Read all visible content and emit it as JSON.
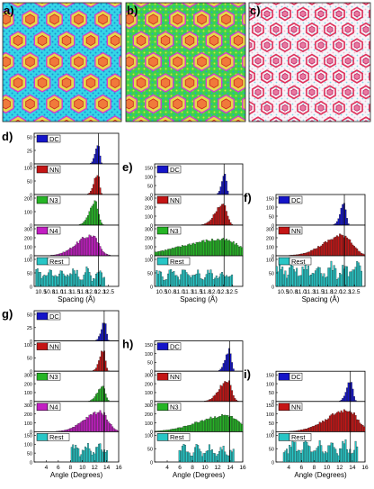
{
  "figure": {
    "image_panels": [
      {
        "label": "a)",
        "style": "blue-hex"
      },
      {
        "label": "b)",
        "style": "green-hex"
      },
      {
        "label": "c)",
        "style": "white-hex"
      }
    ],
    "spacing_panel_labels": [
      "d)",
      "e)",
      "f)"
    ],
    "angle_panel_labels": [
      "g)",
      "h)",
      "i)"
    ],
    "x_titles": {
      "spacing": "Spacing (Å)",
      "angle": "Angle (Degrees)"
    },
    "colors": {
      "DC": "#1515c9",
      "NN": "#c41515",
      "N3": "#26b526",
      "N4": "#c21ec2",
      "Rest": "#28c6c6"
    }
  },
  "chart_data": [
    {
      "type": "bar",
      "panel": "d)",
      "xlabel": "Spacing (Å)",
      "xlim": [
        10.3,
        12.8
      ],
      "xticks": [
        "10.5",
        "10.8",
        "11.0",
        "11.3",
        "11.5",
        "11.8",
        "12.0",
        "12.3",
        "12.5"
      ],
      "xtick_values": [
        10.5,
        10.75,
        11.0,
        11.25,
        11.5,
        11.75,
        12.0,
        12.25,
        12.5
      ],
      "vline": 12.2,
      "series": [
        {
          "name": "DC",
          "ymax": 50,
          "yticks": [
            "0",
            "25",
            "50"
          ],
          "peak": 12.2,
          "sigma": 0.04,
          "height": 42
        },
        {
          "name": "NN",
          "ymax": 100,
          "yticks": [
            "0",
            "50",
            "100"
          ],
          "peak": 12.18,
          "sigma": 0.05,
          "height": 86
        },
        {
          "name": "N3",
          "ymax": 200,
          "yticks": [
            "0",
            "100",
            "200"
          ],
          "peak": 12.12,
          "sigma": 0.08,
          "height": 190
        },
        {
          "name": "N4",
          "ymax": 300,
          "yticks": [
            "0",
            "100",
            "200",
            "300"
          ],
          "peak": 12.0,
          "sigma": 0.2,
          "height": 250
        },
        {
          "name": "Rest",
          "ymax": 100,
          "yticks": [
            "0",
            "50",
            "100"
          ],
          "flat": 60,
          "x0": 10.35,
          "x1": 12.4
        }
      ]
    },
    {
      "type": "bar",
      "panel": "e)",
      "xlabel": "Spacing (Å)",
      "xlim": [
        10.3,
        12.8
      ],
      "xticks": [
        "10.5",
        "10.8",
        "11.0",
        "11.3",
        "11.5",
        "11.8",
        "12.0",
        "12.3",
        "12.5"
      ],
      "xtick_values": [
        10.5,
        10.75,
        11.0,
        11.25,
        11.5,
        11.75,
        12.0,
        12.25,
        12.5
      ],
      "vline": 12.27,
      "series": [
        {
          "name": "DC",
          "ymax": 150,
          "yticks": [
            "0",
            "50",
            "100",
            "150"
          ],
          "peak": 12.3,
          "sigma": 0.04,
          "height": 130
        },
        {
          "name": "NN",
          "ymax": 300,
          "yticks": [
            "0",
            "100",
            "200",
            "300"
          ],
          "peak": 12.25,
          "sigma": 0.1,
          "height": 260
        },
        {
          "name": "N3",
          "ymax": 300,
          "yticks": [
            "0",
            "100",
            "200",
            "300"
          ],
          "peak": 12.2,
          "sigma": 0.5,
          "height": 200
        },
        {
          "name": "Rest",
          "ymax": 100,
          "yticks": [
            "0",
            "50",
            "100"
          ],
          "flat": 55,
          "x0": 10.35,
          "x1": 12.5
        }
      ]
    },
    {
      "type": "bar",
      "panel": "f)",
      "xlabel": "Spacing (Å)",
      "xlim": [
        10.3,
        12.8
      ],
      "xticks": [
        "10.5",
        "10.8",
        "11.0",
        "11.3",
        "11.5",
        "11.8",
        "12.0",
        "12.3",
        "12.5"
      ],
      "xtick_values": [
        10.5,
        10.75,
        11.0,
        11.25,
        11.5,
        11.75,
        12.0,
        12.25,
        12.5
      ],
      "vline": 12.22,
      "series": [
        {
          "name": "DC",
          "ymax": 150,
          "yticks": [
            "0",
            "50",
            "100",
            "150"
          ],
          "peak": 12.22,
          "sigma": 0.05,
          "height": 130
        },
        {
          "name": "NN",
          "ymax": 300,
          "yticks": [
            "0",
            "100",
            "200",
            "300"
          ],
          "peak": 12.2,
          "sigma": 0.25,
          "height": 250
        },
        {
          "name": "Rest",
          "ymax": 100,
          "yticks": [
            "0",
            "50",
            "100"
          ],
          "flat": 75,
          "x0": 10.3,
          "x1": 12.7
        }
      ]
    },
    {
      "type": "bar",
      "panel": "g)",
      "xlabel": "Angle (Degrees)",
      "xlim": [
        2,
        16
      ],
      "xticks": [
        "4",
        "6",
        "8",
        "10",
        "12",
        "14",
        "16"
      ],
      "xtick_values": [
        4,
        6,
        8,
        10,
        12,
        14,
        16
      ],
      "vline": 13.6,
      "series": [
        {
          "name": "DC",
          "ymax": 50,
          "yticks": [
            "0",
            "25",
            "50"
          ],
          "peak": 13.7,
          "sigma": 0.25,
          "height": 42
        },
        {
          "name": "NN",
          "ymax": 100,
          "yticks": [
            "0",
            "50",
            "100"
          ],
          "peak": 13.5,
          "sigma": 0.3,
          "height": 86
        },
        {
          "name": "N3",
          "ymax": 300,
          "yticks": [
            "0",
            "100",
            "200",
            "300"
          ],
          "peak": 13.4,
          "sigma": 0.4,
          "height": 200
        },
        {
          "name": "N4",
          "ymax": 300,
          "yticks": [
            "0",
            "100",
            "200",
            "300"
          ],
          "peak": 13.0,
          "sigma": 1.2,
          "height": 250
        },
        {
          "name": "Rest",
          "ymax": 150,
          "yticks": [
            "0",
            "50",
            "100",
            "150"
          ],
          "flat": 90,
          "x0": 8.2,
          "x1": 14.2
        }
      ]
    },
    {
      "type": "bar",
      "panel": "h)",
      "xlabel": "Angle (Degrees)",
      "xlim": [
        2,
        16
      ],
      "xticks": [
        "4",
        "6",
        "8",
        "10",
        "12",
        "14",
        "16"
      ],
      "xtick_values": [
        4,
        6,
        8,
        10,
        12,
        14,
        16
      ],
      "vline": 13.9,
      "series": [
        {
          "name": "DC",
          "ymax": 150,
          "yticks": [
            "0",
            "50",
            "100",
            "150"
          ],
          "peak": 13.9,
          "sigma": 0.3,
          "height": 130
        },
        {
          "name": "NN",
          "ymax": 300,
          "yticks": [
            "0",
            "100",
            "200",
            "300"
          ],
          "peak": 13.6,
          "sigma": 0.6,
          "height": 260
        },
        {
          "name": "N3",
          "ymax": 300,
          "yticks": [
            "0",
            "100",
            "200",
            "300"
          ],
          "peak": 13.3,
          "sigma": 2.0,
          "height": 200
        },
        {
          "name": "Rest",
          "ymax": 100,
          "yticks": [
            "0",
            "50",
            "100"
          ],
          "flat": 55,
          "x0": 5.8,
          "x1": 14.6
        }
      ]
    },
    {
      "type": "bar",
      "panel": "i)",
      "xlabel": "Angle (Degrees)",
      "xlim": [
        2,
        16
      ],
      "xticks": [
        "4",
        "6",
        "8",
        "10",
        "12",
        "14",
        "16"
      ],
      "xtick_values": [
        4,
        6,
        8,
        10,
        12,
        14,
        16
      ],
      "vline": 13.7,
      "series": [
        {
          "name": "DC",
          "ymax": 150,
          "yticks": [
            "0",
            "50",
            "100",
            "150"
          ],
          "peak": 13.8,
          "sigma": 0.3,
          "height": 130
        },
        {
          "name": "NN",
          "ymax": 150,
          "yticks": [
            "0",
            "50",
            "100",
            "150"
          ],
          "peak": 13.3,
          "sigma": 1.5,
          "height": 135
        },
        {
          "name": "Rest",
          "ymax": 100,
          "yticks": [
            "0",
            "50",
            "100"
          ],
          "flat": 70,
          "x0": 3.2,
          "x1": 14.8
        }
      ]
    }
  ]
}
